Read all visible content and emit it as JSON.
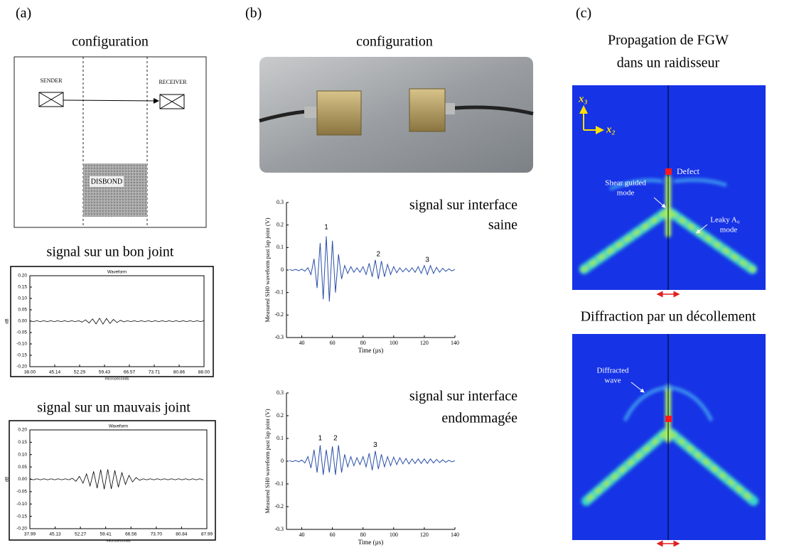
{
  "panels": {
    "a": {
      "label": "(a)",
      "config_title": "configuration",
      "sender": "SENDER",
      "receiver": "RECEIVER",
      "disbond": "DISBOND",
      "good_title": "signal sur un bon joint",
      "bad_title": "signal sur un mauvais joint"
    },
    "b": {
      "label": "(b)",
      "config_title": "configuration",
      "healthy_title": [
        "signal sur interface",
        "saine"
      ],
      "damaged_title": [
        "signal sur interface",
        "endommagée"
      ]
    },
    "c": {
      "label": "(c)",
      "top_title": [
        "Propagation de FGW",
        "dans un raidisseur"
      ],
      "axis_x3": "x₃",
      "axis_x2": "x₂",
      "defect": "Defect",
      "shear_mode": [
        "Shear guided",
        "mode"
      ],
      "leaky_mode": [
        "Leaky A₀",
        "mode"
      ],
      "bottom_title": "Diffraction par un décollement",
      "diffracted": [
        "Diffracted",
        "wave"
      ]
    }
  },
  "chart_data": [
    {
      "type": "line",
      "title": "Waveform",
      "xlabel": "microseconds",
      "ylabel": "dB",
      "color": "#000000",
      "x": [
        38,
        39,
        40,
        41,
        42,
        43,
        44,
        45,
        46,
        47,
        48,
        49,
        50,
        51,
        52,
        53,
        54,
        55,
        56,
        57,
        58,
        59,
        60,
        61,
        62,
        63,
        64,
        65,
        66,
        67,
        68,
        69,
        70,
        71,
        72,
        73,
        74,
        75,
        76,
        77,
        78,
        79,
        80,
        81,
        82,
        83,
        84,
        85,
        86,
        87,
        88
      ],
      "values": [
        0.002,
        -0.002,
        0.002,
        -0.002,
        0.002,
        -0.002,
        0.002,
        -0.002,
        0.002,
        -0.002,
        0.002,
        -0.002,
        0.002,
        -0.002,
        0.002,
        -0.004,
        0.006,
        -0.008,
        0.01,
        -0.012,
        0.013,
        -0.013,
        0.012,
        -0.01,
        0.008,
        -0.006,
        0.004,
        -0.003,
        0.002,
        -0.002,
        0.002,
        -0.002,
        0.002,
        -0.002,
        0.002,
        -0.002,
        0.002,
        -0.002,
        0.002,
        -0.002,
        0.002,
        -0.002,
        0.002,
        -0.002,
        0.002,
        -0.002,
        0.002,
        -0.002,
        0.002,
        -0.002,
        0.002
      ],
      "xlim": [
        38,
        88
      ],
      "xticks": [
        {
          "value": 38,
          "label": "38.00"
        },
        45.14,
        52.29,
        59.43,
        66.57,
        73.71,
        80.86,
        {
          "value": 88,
          "label": "88.00"
        }
      ],
      "ylim": [
        -0.2,
        0.2
      ],
      "yticks": [
        {
          "value": 0.2,
          "label": "0.20"
        },
        0.15,
        {
          "value": 0.1,
          "label": "0.10"
        },
        0.05,
        {
          "value": 0,
          "label": "0.00"
        },
        -0.05,
        {
          "value": -0.1,
          "label": "-0.10"
        },
        -0.15,
        {
          "value": -0.2,
          "label": "-0.20"
        }
      ]
    },
    {
      "type": "line",
      "title": "Waveform",
      "xlabel": "microseconds",
      "ylabel": "dB",
      "color": "#000000",
      "x": [
        38,
        39,
        40,
        41,
        42,
        43,
        44,
        45,
        46,
        47,
        48,
        49,
        50,
        51,
        52,
        53,
        54,
        55,
        56,
        57,
        58,
        59,
        60,
        61,
        62,
        63,
        64,
        65,
        66,
        67,
        68,
        69,
        70,
        71,
        72,
        73,
        74,
        75,
        76,
        77,
        78,
        79,
        80,
        81,
        82,
        83,
        84,
        85,
        86,
        87
      ],
      "values": [
        0.002,
        -0.002,
        0.002,
        -0.002,
        0.002,
        -0.002,
        0.002,
        -0.002,
        0.002,
        -0.002,
        0.002,
        -0.002,
        0.004,
        -0.008,
        0.012,
        -0.016,
        0.022,
        -0.027,
        0.032,
        -0.036,
        0.039,
        -0.04,
        0.04,
        -0.039,
        0.036,
        -0.032,
        0.027,
        -0.021,
        0.016,
        -0.011,
        0.007,
        -0.004,
        0.002,
        -0.002,
        0.002,
        -0.002,
        0.002,
        -0.002,
        0.002,
        -0.002,
        0.002,
        -0.002,
        0.002,
        -0.002,
        0.002,
        -0.002,
        0.002,
        -0.002,
        0.002,
        -0.002
      ],
      "xlim": [
        37.99,
        87.99
      ],
      "xticks": [
        37.99,
        45.13,
        52.27,
        59.41,
        66.56,
        {
          "value": 73.7,
          "label": "73.70"
        },
        80.84,
        87.99
      ],
      "ylim": [
        -0.2,
        0.2
      ],
      "yticks": [
        {
          "value": 0.2,
          "label": "0.20"
        },
        0.15,
        {
          "value": 0.1,
          "label": "0.10"
        },
        0.05,
        {
          "value": 0,
          "label": "0.00"
        },
        -0.05,
        {
          "value": -0.1,
          "label": "-0.10"
        },
        -0.15,
        {
          "value": -0.2,
          "label": "-0.20"
        }
      ]
    },
    {
      "type": "line",
      "xlabel": "Time (µs)",
      "ylabel": "Measured SH0 waveform past lap joint (V)",
      "color": "#2a4fa8",
      "x": [
        32,
        34,
        36,
        38,
        40,
        42,
        44,
        46,
        48,
        50,
        52,
        54,
        56,
        58,
        60,
        62,
        64,
        66,
        68,
        70,
        72,
        74,
        76,
        78,
        80,
        82,
        84,
        86,
        88,
        90,
        92,
        94,
        96,
        98,
        100,
        102,
        104,
        106,
        108,
        110,
        112,
        114,
        116,
        118,
        120,
        122,
        124,
        126,
        128,
        130,
        132,
        134,
        136,
        138,
        140
      ],
      "values": [
        0.002,
        -0.002,
        0.003,
        -0.003,
        0.004,
        -0.005,
        0.01,
        -0.02,
        0.05,
        -0.08,
        0.12,
        -0.13,
        0.15,
        -0.14,
        0.13,
        -0.1,
        0.07,
        -0.04,
        0.02,
        -0.015,
        0.015,
        -0.01,
        0.01,
        -0.01,
        0.015,
        -0.02,
        0.03,
        -0.03,
        0.045,
        -0.04,
        0.04,
        -0.03,
        0.025,
        -0.02,
        0.015,
        -0.012,
        0.01,
        -0.008,
        0.008,
        -0.008,
        0.01,
        -0.01,
        0.015,
        -0.015,
        0.02,
        -0.02,
        0.02,
        -0.015,
        0.012,
        -0.01,
        0.008,
        -0.006,
        0.005,
        -0.004,
        0.003
      ],
      "xlim": [
        30,
        140
      ],
      "xticks": [
        40,
        60,
        80,
        100,
        120,
        140
      ],
      "ylim": [
        -0.3,
        0.3
      ],
      "yticks": [
        -0.3,
        -0.2,
        -0.1,
        0,
        0.1,
        0.2,
        0.3
      ],
      "annotations": [
        {
          "text": "1",
          "x": 56,
          "y": 0.19
        },
        {
          "text": "2",
          "x": 90,
          "y": 0.07
        },
        {
          "text": "3",
          "x": 122,
          "y": 0.045
        }
      ]
    },
    {
      "type": "line",
      "xlabel": "Time (µs)",
      "ylabel": "Measured SH0 waveform past lap joint (V)",
      "color": "#2a4fa8",
      "x": [
        32,
        34,
        36,
        38,
        40,
        42,
        44,
        46,
        48,
        50,
        52,
        54,
        56,
        58,
        60,
        62,
        64,
        66,
        68,
        70,
        72,
        74,
        76,
        78,
        80,
        82,
        84,
        86,
        88,
        90,
        92,
        94,
        96,
        98,
        100,
        102,
        104,
        106,
        108,
        110,
        112,
        114,
        116,
        118,
        120,
        122,
        124,
        126,
        128,
        130,
        132,
        134,
        136,
        138,
        140
      ],
      "values": [
        0.002,
        -0.002,
        0.003,
        -0.003,
        0.005,
        -0.008,
        0.02,
        -0.03,
        0.05,
        -0.05,
        0.07,
        -0.06,
        0.05,
        -0.05,
        0.065,
        -0.06,
        0.07,
        -0.05,
        0.03,
        -0.025,
        0.02,
        -0.02,
        0.015,
        -0.015,
        0.02,
        -0.025,
        0.035,
        -0.04,
        0.045,
        -0.035,
        0.03,
        -0.025,
        0.02,
        -0.02,
        0.018,
        -0.015,
        0.015,
        -0.012,
        0.012,
        -0.012,
        0.01,
        -0.01,
        0.01,
        -0.01,
        0.01,
        -0.01,
        0.01,
        -0.008,
        0.008,
        -0.006,
        0.006,
        -0.005,
        0.004,
        -0.003,
        0.002
      ],
      "xlim": [
        30,
        140
      ],
      "xticks": [
        40,
        60,
        80,
        100,
        120,
        140
      ],
      "ylim": [
        -0.3,
        0.3
      ],
      "yticks": [
        -0.3,
        -0.2,
        -0.1,
        0,
        0.1,
        0.2,
        0.3
      ],
      "annotations": [
        {
          "text": "1",
          "x": 52,
          "y": 0.1
        },
        {
          "text": "2",
          "x": 62,
          "y": 0.1
        },
        {
          "text": "3",
          "x": 88,
          "y": 0.07
        }
      ]
    }
  ]
}
